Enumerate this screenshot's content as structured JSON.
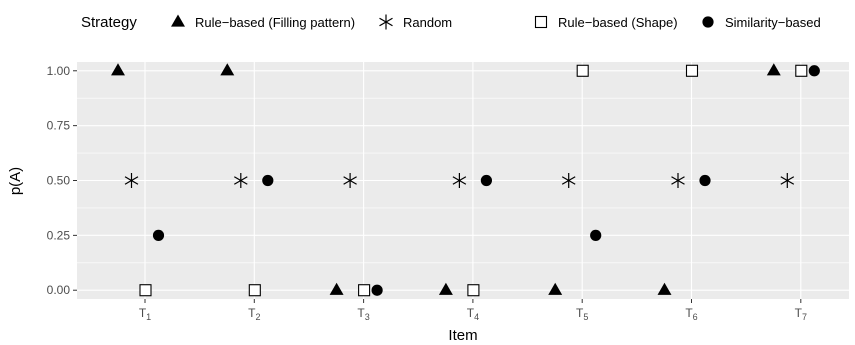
{
  "chart_data": {
    "type": "scatter",
    "xlabel": "Item",
    "ylabel": "p(A)",
    "categories": [
      "T1",
      "T2",
      "T3",
      "T4",
      "T5",
      "T6",
      "T7"
    ],
    "category_labels": [
      {
        "base": "T",
        "sub": "1"
      },
      {
        "base": "T",
        "sub": "2"
      },
      {
        "base": "T",
        "sub": "3"
      },
      {
        "base": "T",
        "sub": "4"
      },
      {
        "base": "T",
        "sub": "5"
      },
      {
        "base": "T",
        "sub": "6"
      },
      {
        "base": "T",
        "sub": "7"
      }
    ],
    "ylim": [
      -0.04,
      1.04
    ],
    "yticks": [
      0.0,
      0.25,
      0.5,
      0.75,
      1.0
    ],
    "ytick_labels": [
      "0.00",
      "0.25",
      "0.50",
      "0.75",
      "1.00"
    ],
    "grid": true,
    "legend": {
      "title": "Strategy",
      "position": "top"
    },
    "series": [
      {
        "name": "Rule−based (Filling pattern)",
        "shape": "triangle",
        "values": [
          1.0,
          1.0,
          0.0,
          0.0,
          0.0,
          0.0,
          1.0
        ]
      },
      {
        "name": "Random",
        "shape": "asterisk",
        "values": [
          0.5,
          0.5,
          0.5,
          0.5,
          0.5,
          0.5,
          0.5
        ]
      },
      {
        "name": "Rule−based (Shape)",
        "shape": "square",
        "values": [
          0.0,
          0.0,
          0.0,
          0.0,
          1.0,
          1.0,
          1.0
        ]
      },
      {
        "name": "Similarity−based",
        "shape": "circle",
        "values": [
          0.25,
          0.5,
          0.0,
          0.5,
          0.25,
          0.5,
          1.0
        ]
      }
    ],
    "colors": {
      "panel_background": "#ebebeb",
      "grid_line": "#ffffff",
      "marker": "#000000",
      "tick_text": "#4d4d4d"
    }
  }
}
